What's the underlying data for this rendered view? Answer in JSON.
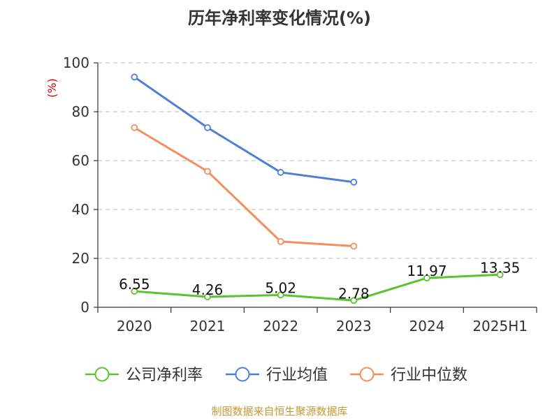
{
  "chart_data": {
    "type": "line",
    "title": "历年净利率变化情况(%)",
    "ylabel": "(%)",
    "xlabel": "",
    "categories": [
      "2020",
      "2021",
      "2022",
      "2023",
      "2024",
      "2025H1"
    ],
    "ylim": [
      0,
      100
    ],
    "yticks": [
      0,
      20,
      40,
      60,
      80,
      100
    ],
    "grid": true,
    "legend_position": "bottom",
    "series": [
      {
        "name": "公司净利率",
        "color": "#5cc22f",
        "values": [
          6.55,
          4.26,
          5.02,
          2.78,
          11.97,
          13.35
        ],
        "labels": [
          "6.55",
          "4.26",
          "5.02",
          "2.78",
          "11.97",
          "13.35"
        ]
      },
      {
        "name": "行业均值",
        "color": "#4e7fd8",
        "values": [
          94.2,
          73.5,
          55.2,
          51.2,
          null,
          null
        ]
      },
      {
        "name": "行业中位数",
        "color": "#f48e5a",
        "values": [
          73.5,
          55.6,
          26.9,
          25.0,
          null,
          null
        ]
      }
    ]
  },
  "footer": {
    "source": "制图数据来自恒生聚源数据库"
  }
}
